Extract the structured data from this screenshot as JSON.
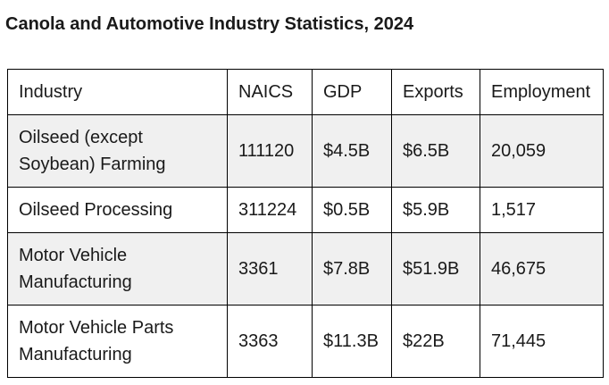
{
  "page": {
    "title": "Canola and Automotive Industry Statistics, 2024"
  },
  "table": {
    "columns": [
      "Industry",
      "NAICS",
      "GDP",
      "Exports",
      "Employment"
    ],
    "rows": [
      [
        "Oilseed (except Soybean) Farming",
        "111120",
        "$4.5B",
        "$6.5B",
        "20,059"
      ],
      [
        "Oilseed Processing",
        "311224",
        "$0.5B",
        "$5.9B",
        "1,517"
      ],
      [
        "Motor Vehicle Manufacturing",
        "3361",
        "$7.8B",
        "$51.9B",
        "46,675"
      ],
      [
        "Motor Vehicle Parts Manufacturing",
        "3363",
        "$11.3B",
        "$22B",
        "71,445"
      ]
    ]
  },
  "colors": {
    "background": "#ffffff",
    "text": "#1a1a1a",
    "border": "#000000",
    "row_alt_bg": "#f0f0f0"
  }
}
